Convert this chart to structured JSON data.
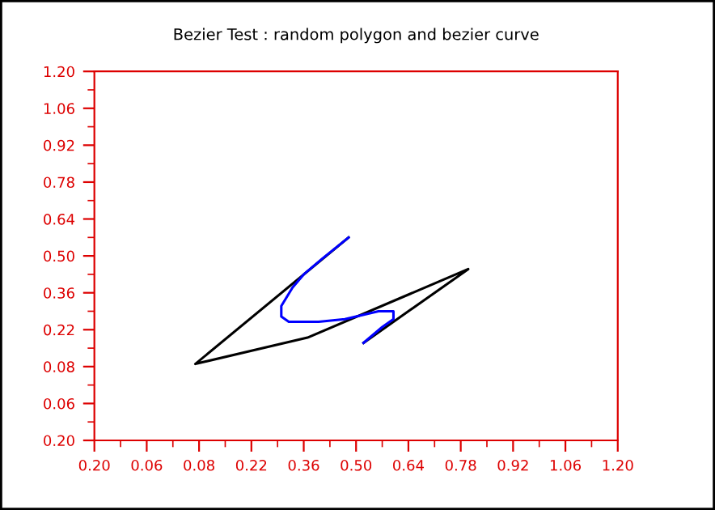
{
  "chart_data": {
    "type": "line",
    "title": "Bezier Test : random polygon and bezier curve",
    "series": [
      {
        "color": "#000000",
        "x": [
          0.48,
          0.07,
          0.37,
          0.8,
          0.52
        ],
        "values": [
          0.57,
          0.09,
          0.19,
          0.45,
          0.17
        ]
      },
      {
        "color": "#0000ff",
        "x": [
          0.48,
          0.41,
          0.36,
          0.33,
          0.3,
          0.3,
          0.32,
          0.4,
          0.47,
          0.56,
          0.6,
          0.6,
          0.57,
          0.52
        ],
        "values": [
          0.57,
          0.49,
          0.43,
          0.38,
          0.31,
          0.27,
          0.25,
          0.25,
          0.26,
          0.29,
          0.29,
          0.26,
          0.23,
          0.17
        ]
      }
    ],
    "xlim": [
      -0.2,
      1.2
    ],
    "ylim": [
      -0.2,
      1.2
    ],
    "xticks": [
      {
        "value": -0.2,
        "label": "0.20"
      },
      {
        "value": -0.06,
        "label": "0.06"
      },
      {
        "value": 0.08,
        "label": "0.08"
      },
      {
        "value": 0.22,
        "label": "0.22"
      },
      {
        "value": 0.36,
        "label": "0.36"
      },
      {
        "value": 0.5,
        "label": "0.50"
      },
      {
        "value": 0.64,
        "label": "0.64"
      },
      {
        "value": 0.78,
        "label": "0.78"
      },
      {
        "value": 0.92,
        "label": "0.92"
      },
      {
        "value": 1.06,
        "label": "1.06"
      },
      {
        "value": 1.2,
        "label": "1.20"
      }
    ],
    "yticks": [
      {
        "value": -0.2,
        "label": "0.20"
      },
      {
        "value": -0.06,
        "label": "0.06"
      },
      {
        "value": 0.08,
        "label": "0.08"
      },
      {
        "value": 0.22,
        "label": "0.22"
      },
      {
        "value": 0.36,
        "label": "0.36"
      },
      {
        "value": 0.5,
        "label": "0.50"
      },
      {
        "value": 0.64,
        "label": "0.64"
      },
      {
        "value": 0.78,
        "label": "0.78"
      },
      {
        "value": 0.92,
        "label": "0.92"
      },
      {
        "value": 1.06,
        "label": "1.06"
      },
      {
        "value": 1.2,
        "label": "1.20"
      }
    ],
    "grid": false,
    "marker": "none",
    "line_style": "solid"
  }
}
